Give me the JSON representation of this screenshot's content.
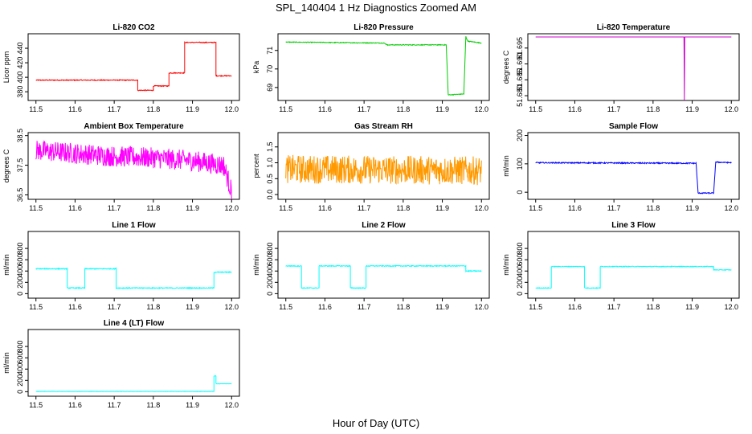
{
  "figure": {
    "title": "SPL_140404  1 Hz Diagnostics Zoomed AM",
    "xlabel": "Hour of Day (UTC)"
  },
  "chart_data": [
    {
      "type": "line",
      "title": "Li-820 CO2",
      "ylabel": "Licor ppm",
      "color": "#ff0000",
      "xlim": [
        11.5,
        12.0
      ],
      "ylim": [
        368,
        460
      ],
      "xticks": [
        "11.5",
        "11.6",
        "11.7",
        "11.8",
        "11.9",
        "12.0"
      ],
      "yticks": [
        "380",
        "400",
        "420",
        "440"
      ],
      "noise": 0.6,
      "series": [
        {
          "name": "CO2",
          "x": [
            11.5,
            11.76,
            11.76,
            11.8,
            11.8,
            11.84,
            11.84,
            11.88,
            11.88,
            11.96,
            11.96,
            12.0
          ],
          "y": [
            396,
            396,
            382,
            382,
            388,
            388,
            406,
            406,
            448,
            448,
            402,
            402
          ]
        }
      ]
    },
    {
      "type": "line",
      "title": "Li-820 Pressure",
      "ylabel": "kPa",
      "color": "#00cc00",
      "xlim": [
        11.5,
        12.0
      ],
      "ylim": [
        68.3,
        71.9
      ],
      "xticks": [
        "11.5",
        "11.6",
        "11.7",
        "11.8",
        "11.9",
        "12.0"
      ],
      "yticks": [
        "69",
        "70",
        "71"
      ],
      "noise": 0.02,
      "series": [
        {
          "name": "Pressure",
          "x": [
            11.5,
            11.75,
            11.76,
            11.91,
            11.915,
            11.955,
            11.96,
            11.965,
            12.0
          ],
          "y": [
            71.45,
            71.4,
            71.3,
            71.3,
            68.6,
            68.65,
            71.75,
            71.5,
            71.4
          ]
        }
      ]
    },
    {
      "type": "line",
      "title": "Li-820 Temperature",
      "ylabel": "degrees C",
      "color": "#cc00cc",
      "xlim": [
        11.5,
        12.0
      ],
      "ylim": [
        51.6785,
        51.6995
      ],
      "xticks": [
        "11.5",
        "11.6",
        "11.7",
        "11.8",
        "11.9",
        "12.0"
      ],
      "yticks": [
        "51.680",
        "51.685",
        "51.690",
        "51.695"
      ],
      "noise": 0,
      "series": [
        {
          "name": "Temperature",
          "x": [
            11.5,
            11.879,
            11.88,
            11.881,
            12.0
          ],
          "y": [
            51.6985,
            51.6985,
            51.6785,
            51.6985,
            51.6985
          ]
        }
      ]
    },
    {
      "type": "line",
      "title": "Ambient Box Temperature",
      "ylabel": "degrees C",
      "color": "#ff00ff",
      "xlim": [
        11.5,
        12.0
      ],
      "ylim": [
        36.35,
        38.6
      ],
      "xticks": [
        "11.5",
        "11.6",
        "11.7",
        "11.8",
        "11.9",
        "12.0"
      ],
      "yticks": [
        "36.5",
        "37.5",
        "38.5"
      ],
      "noise": 0.35,
      "series": [
        {
          "name": "Box Temp",
          "x": [
            11.5,
            11.6,
            11.7,
            11.8,
            11.9,
            11.98,
            12.0
          ],
          "y": [
            38.0,
            37.9,
            37.8,
            37.75,
            37.65,
            37.5,
            36.6
          ]
        }
      ]
    },
    {
      "type": "line",
      "title": "Gas Stream RH",
      "ylabel": "percent",
      "color": "#ff9900",
      "xlim": [
        11.5,
        12.0
      ],
      "ylim": [
        -0.15,
        1.95
      ],
      "xticks": [
        "11.5",
        "11.6",
        "11.7",
        "11.8",
        "11.9",
        "12.0"
      ],
      "yticks": [
        "0.0",
        "0.5",
        "1.0",
        "1.5"
      ],
      "noise": 0.45,
      "series": [
        {
          "name": "RH",
          "x": [
            11.5,
            11.75,
            12.0
          ],
          "y": [
            0.8,
            0.78,
            0.75
          ]
        }
      ]
    },
    {
      "type": "line",
      "title": "Sample Flow",
      "ylabel": "ml/min",
      "color": "#0000ff",
      "xlim": [
        11.5,
        12.0
      ],
      "ylim": [
        -25,
        210
      ],
      "xticks": [
        "11.5",
        "11.6",
        "11.7",
        "11.8",
        "11.9",
        "12.0"
      ],
      "yticks": [
        "0",
        "100",
        "200"
      ],
      "noise": 2,
      "series": [
        {
          "name": "Sample",
          "x": [
            11.5,
            11.91,
            11.915,
            11.955,
            11.96,
            12.0
          ],
          "y": [
            104,
            102,
            -3,
            -3,
            106,
            104
          ]
        }
      ]
    },
    {
      "type": "line",
      "title": "Line 1 Flow",
      "ylabel": "ml/min",
      "color": "#00ffff",
      "xlim": [
        11.5,
        12.0
      ],
      "ylim": [
        -80,
        1100
      ],
      "xticks": [
        "11.5",
        "11.6",
        "11.7",
        "11.8",
        "11.9",
        "12.0"
      ],
      "yticks": [
        "0",
        "200",
        "400",
        "600",
        "800"
      ],
      "noise": 8,
      "series": [
        {
          "name": "Line 1",
          "x": [
            11.5,
            11.58,
            11.58,
            11.625,
            11.625,
            11.705,
            11.705,
            11.955,
            11.955,
            12.0
          ],
          "y": [
            440,
            440,
            100,
            100,
            440,
            440,
            100,
            100,
            380,
            380
          ]
        }
      ]
    },
    {
      "type": "line",
      "title": "Line 2 Flow",
      "ylabel": "ml/min",
      "color": "#00ffff",
      "xlim": [
        11.5,
        12.0
      ],
      "ylim": [
        -80,
        1100
      ],
      "xticks": [
        "11.5",
        "11.6",
        "11.7",
        "11.8",
        "11.9",
        "12.0"
      ],
      "yticks": [
        "0",
        "200",
        "400",
        "600",
        "800"
      ],
      "noise": 8,
      "series": [
        {
          "name": "Line 2",
          "x": [
            11.5,
            11.54,
            11.54,
            11.585,
            11.585,
            11.665,
            11.665,
            11.705,
            11.705,
            11.96,
            11.96,
            12.0
          ],
          "y": [
            490,
            490,
            100,
            100,
            490,
            490,
            100,
            100,
            490,
            490,
            400,
            400
          ]
        }
      ]
    },
    {
      "type": "line",
      "title": "Line 3 Flow",
      "ylabel": "ml/min",
      "color": "#00ffff",
      "xlim": [
        11.5,
        12.0
      ],
      "ylim": [
        -80,
        1100
      ],
      "xticks": [
        "11.5",
        "11.6",
        "11.7",
        "11.8",
        "11.9",
        "12.0"
      ],
      "yticks": [
        "0",
        "200",
        "400",
        "600",
        "800"
      ],
      "noise": 6,
      "series": [
        {
          "name": "Line 3",
          "x": [
            11.5,
            11.54,
            11.54,
            11.625,
            11.625,
            11.665,
            11.665,
            11.955,
            11.955,
            12.0
          ],
          "y": [
            100,
            100,
            480,
            480,
            100,
            100,
            480,
            480,
            420,
            420
          ]
        }
      ]
    },
    {
      "type": "line",
      "title": "Line 4 (LT) Flow",
      "ylabel": "ml/min",
      "color": "#00ffff",
      "xlim": [
        11.5,
        12.0
      ],
      "ylim": [
        -80,
        1100
      ],
      "xticks": [
        "11.5",
        "11.6",
        "11.7",
        "11.8",
        "11.9",
        "12.0"
      ],
      "yticks": [
        "0",
        "200",
        "400",
        "600",
        "800"
      ],
      "noise": 3,
      "series": [
        {
          "name": "Line 4",
          "x": [
            11.5,
            11.955,
            11.955,
            11.96,
            11.96,
            12.0
          ],
          "y": [
            5,
            5,
            280,
            280,
            140,
            140
          ]
        }
      ]
    }
  ]
}
